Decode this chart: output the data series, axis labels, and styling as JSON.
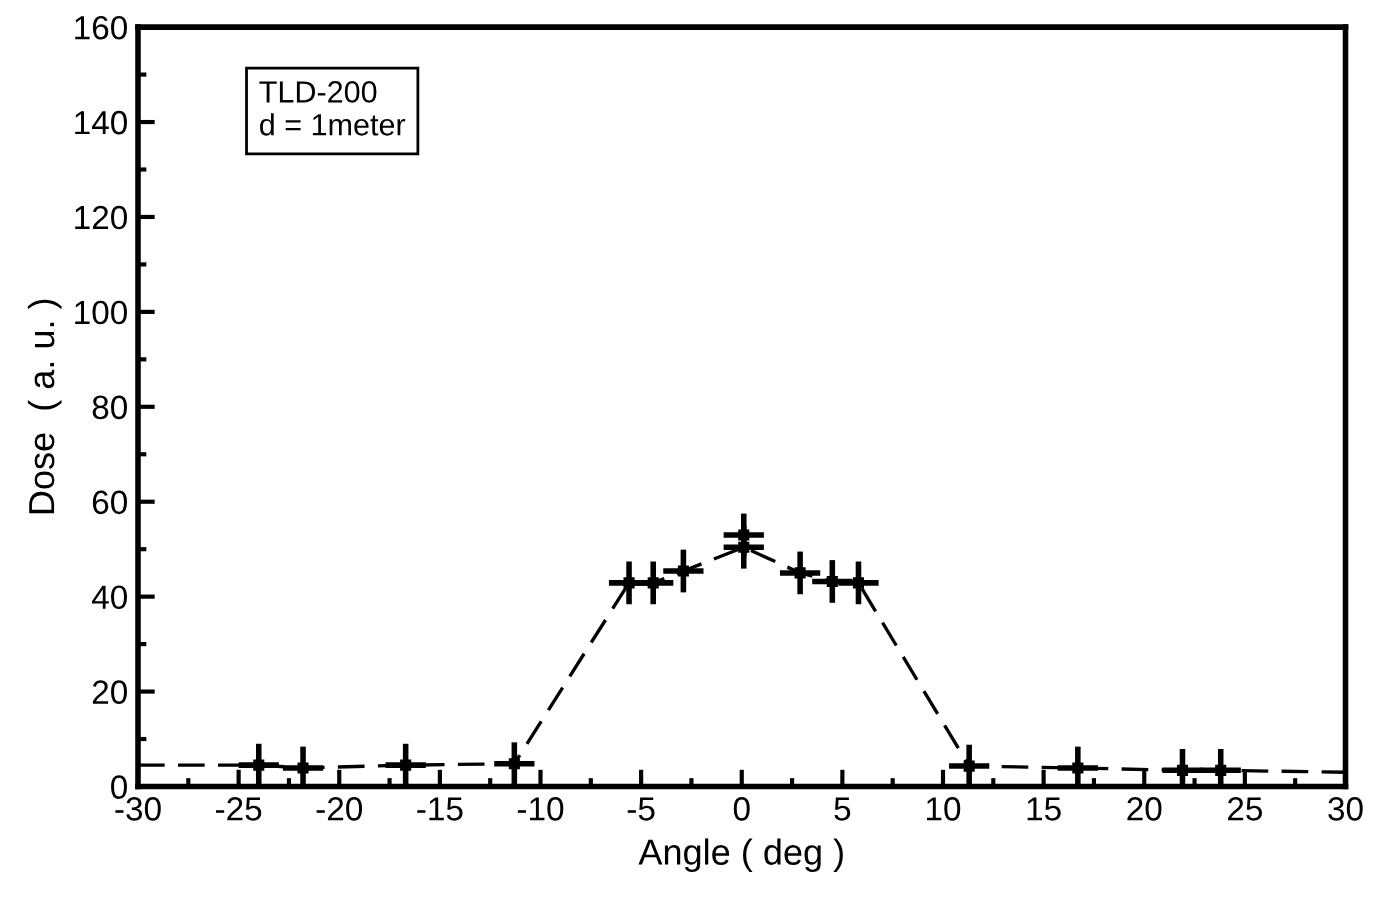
{
  "chart_data": {
    "type": "scatter",
    "xlabel": "Angle ( deg )",
    "ylabel": "Dose  ( a. u. )",
    "annotations": [
      "TLD-200\nd = 1meter"
    ],
    "series": [
      {
        "type": "line",
        "color": "#000000",
        "line_style": "dashed",
        "marker": "none",
        "x": [
          -30,
          -24,
          -21.8,
          -16.7,
          -11.3,
          -5.6,
          -4.4,
          -2.9,
          0.1,
          2.9,
          4.5,
          5.8,
          11.3,
          16.7,
          21.9,
          23.8,
          30
        ],
        "values": [
          4.5,
          4.5,
          3.9,
          4.5,
          4.8,
          42.9,
          42.9,
          45.4,
          50.4,
          45,
          43.2,
          42.9,
          4.3,
          3.9,
          3.4,
          3.4,
          3
        ]
      },
      {
        "color": "#000000",
        "marker": "square",
        "errors": [
          4.5,
          4.5,
          4.5,
          4.5,
          4.5,
          4.5,
          4.5,
          4.5,
          4.5,
          4.5,
          4.5,
          4.5,
          4.5,
          4.5,
          4.5,
          4.5
        ],
        "xerrors": [
          1,
          1,
          1,
          1,
          1,
          1,
          1,
          1,
          1,
          1,
          1,
          1,
          1,
          1,
          1,
          1
        ],
        "x": [
          -24,
          -21.8,
          -16.7,
          -11.3,
          -5.6,
          -4.4,
          -2.9,
          0.1,
          0.1,
          2.9,
          4.5,
          5.8,
          11.3,
          16.7,
          21.9,
          23.8
        ],
        "values": [
          4.5,
          3.9,
          4.5,
          4.8,
          42.9,
          42.9,
          45.4,
          53,
          50.4,
          45,
          43.2,
          42.9,
          4.3,
          3.9,
          3.4,
          3.4
        ]
      }
    ],
    "xlim": [
      -30,
      30
    ],
    "xticks": [
      -30,
      -25,
      -20,
      -15,
      -10,
      -5,
      0,
      5,
      10,
      15,
      20,
      25,
      30
    ],
    "ylim": [
      0,
      160
    ],
    "yticks": [
      0,
      20,
      40,
      60,
      80,
      100,
      120,
      140,
      160
    ],
    "grid": false,
    "legend": false
  }
}
